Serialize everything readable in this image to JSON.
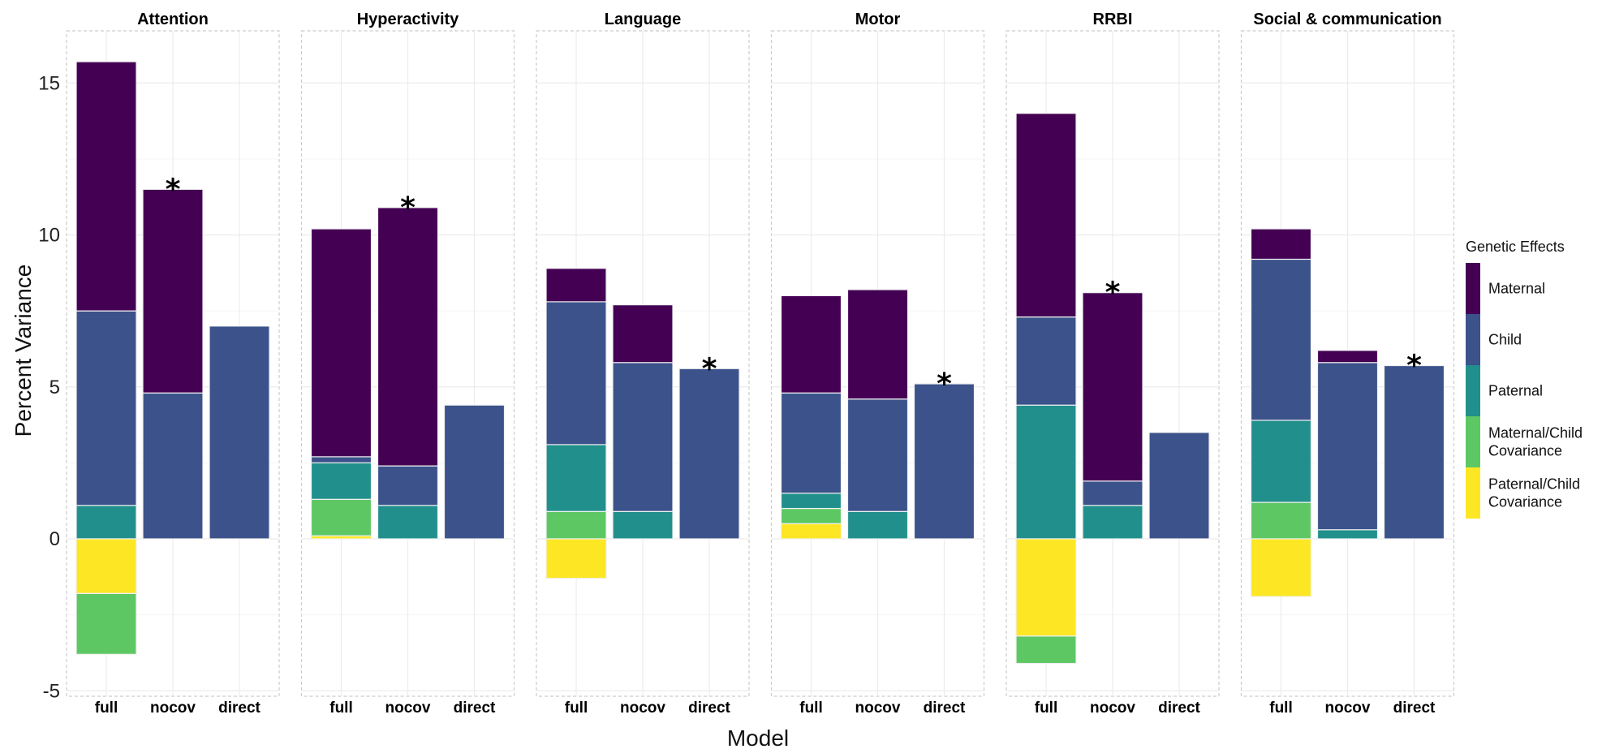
{
  "chart_data": {
    "type": "bar",
    "stacked": true,
    "ylabel": "Percent Variance",
    "xlabel": "Model",
    "ylim": [
      -5,
      16.5
    ],
    "yticks": [
      -5,
      0,
      5,
      10,
      15
    ],
    "grid": true,
    "legend": {
      "title": "Genetic Effects",
      "placement": "right",
      "items": [
        {
          "key": "maternal",
          "label": [
            "Maternal"
          ],
          "color": "#440154"
        },
        {
          "key": "child",
          "label": [
            "Child"
          ],
          "color": "#3b528b"
        },
        {
          "key": "paternal",
          "label": [
            "Paternal"
          ],
          "color": "#21908c"
        },
        {
          "key": "matchild",
          "label": [
            "Maternal/Child",
            "Covariance"
          ],
          "color": "#5dc863"
        },
        {
          "key": "patchild",
          "label": [
            "Paternal/Child",
            "Covariance"
          ],
          "color": "#fde725"
        }
      ]
    },
    "categories": [
      "full",
      "nocov",
      "direct"
    ],
    "panels": [
      {
        "title": "Attention",
        "bars": [
          {
            "model": "full",
            "pos": [
              {
                "key": "paternal",
                "value": 1.1
              },
              {
                "key": "child",
                "value": 6.4
              },
              {
                "key": "maternal",
                "value": 8.2
              }
            ],
            "neg": [
              {
                "key": "patchild",
                "value": -1.8
              },
              {
                "key": "matchild",
                "value": -2.0
              }
            ],
            "star": false
          },
          {
            "model": "nocov",
            "pos": [
              {
                "key": "child",
                "value": 4.8
              },
              {
                "key": "maternal",
                "value": 6.7
              }
            ],
            "neg": [],
            "star": true
          },
          {
            "model": "direct",
            "pos": [
              {
                "key": "child",
                "value": 7.0
              }
            ],
            "neg": [],
            "star": false
          }
        ]
      },
      {
        "title": "Hyperactivity",
        "bars": [
          {
            "model": "full",
            "pos": [
              {
                "key": "patchild",
                "value": 0.1
              },
              {
                "key": "matchild",
                "value": 1.2
              },
              {
                "key": "paternal",
                "value": 1.2
              },
              {
                "key": "child",
                "value": 0.2
              },
              {
                "key": "maternal",
                "value": 7.5
              }
            ],
            "neg": [],
            "star": false
          },
          {
            "model": "nocov",
            "pos": [
              {
                "key": "paternal",
                "value": 1.1
              },
              {
                "key": "child",
                "value": 1.3
              },
              {
                "key": "maternal",
                "value": 8.5
              }
            ],
            "neg": [],
            "star": true
          },
          {
            "model": "direct",
            "pos": [
              {
                "key": "child",
                "value": 4.4
              }
            ],
            "neg": [],
            "star": false
          }
        ]
      },
      {
        "title": "Language",
        "bars": [
          {
            "model": "full",
            "pos": [
              {
                "key": "matchild",
                "value": 0.9
              },
              {
                "key": "paternal",
                "value": 2.2
              },
              {
                "key": "child",
                "value": 4.7
              },
              {
                "key": "maternal",
                "value": 1.1
              }
            ],
            "neg": [
              {
                "key": "patchild",
                "value": -1.3
              }
            ],
            "star": false
          },
          {
            "model": "nocov",
            "pos": [
              {
                "key": "paternal",
                "value": 0.9
              },
              {
                "key": "child",
                "value": 4.9
              },
              {
                "key": "maternal",
                "value": 1.9
              }
            ],
            "neg": [],
            "star": false
          },
          {
            "model": "direct",
            "pos": [
              {
                "key": "child",
                "value": 5.6
              }
            ],
            "neg": [],
            "star": true
          }
        ]
      },
      {
        "title": "Motor",
        "bars": [
          {
            "model": "full",
            "pos": [
              {
                "key": "patchild",
                "value": 0.5
              },
              {
                "key": "matchild",
                "value": 0.5
              },
              {
                "key": "paternal",
                "value": 0.5
              },
              {
                "key": "child",
                "value": 3.3
              },
              {
                "key": "maternal",
                "value": 3.2
              }
            ],
            "neg": [],
            "star": false
          },
          {
            "model": "nocov",
            "pos": [
              {
                "key": "paternal",
                "value": 0.9
              },
              {
                "key": "child",
                "value": 3.7
              },
              {
                "key": "maternal",
                "value": 3.6
              }
            ],
            "neg": [],
            "star": false
          },
          {
            "model": "direct",
            "pos": [
              {
                "key": "child",
                "value": 5.1
              }
            ],
            "neg": [],
            "star": true
          }
        ]
      },
      {
        "title": "RRBI",
        "bars": [
          {
            "model": "full",
            "pos": [
              {
                "key": "paternal",
                "value": 4.4
              },
              {
                "key": "child",
                "value": 2.9
              },
              {
                "key": "maternal",
                "value": 6.7
              }
            ],
            "neg": [
              {
                "key": "patchild",
                "value": -3.2
              },
              {
                "key": "matchild",
                "value": -0.9
              }
            ],
            "star": false
          },
          {
            "model": "nocov",
            "pos": [
              {
                "key": "paternal",
                "value": 1.1
              },
              {
                "key": "child",
                "value": 0.8
              },
              {
                "key": "maternal",
                "value": 6.2
              }
            ],
            "neg": [],
            "star": true
          },
          {
            "model": "direct",
            "pos": [
              {
                "key": "child",
                "value": 3.5
              }
            ],
            "neg": [],
            "star": false
          }
        ]
      },
      {
        "title": "Social & communication",
        "bars": [
          {
            "model": "full",
            "pos": [
              {
                "key": "matchild",
                "value": 1.2
              },
              {
                "key": "paternal",
                "value": 2.7
              },
              {
                "key": "child",
                "value": 5.3
              },
              {
                "key": "maternal",
                "value": 1.0
              }
            ],
            "neg": [
              {
                "key": "patchild",
                "value": -1.9
              }
            ],
            "star": false
          },
          {
            "model": "nocov",
            "pos": [
              {
                "key": "paternal",
                "value": 0.3
              },
              {
                "key": "child",
                "value": 5.5
              },
              {
                "key": "maternal",
                "value": 0.4
              }
            ],
            "neg": [],
            "star": false
          },
          {
            "model": "direct",
            "pos": [
              {
                "key": "child",
                "value": 5.7
              }
            ],
            "neg": [],
            "star": true
          }
        ]
      }
    ]
  }
}
